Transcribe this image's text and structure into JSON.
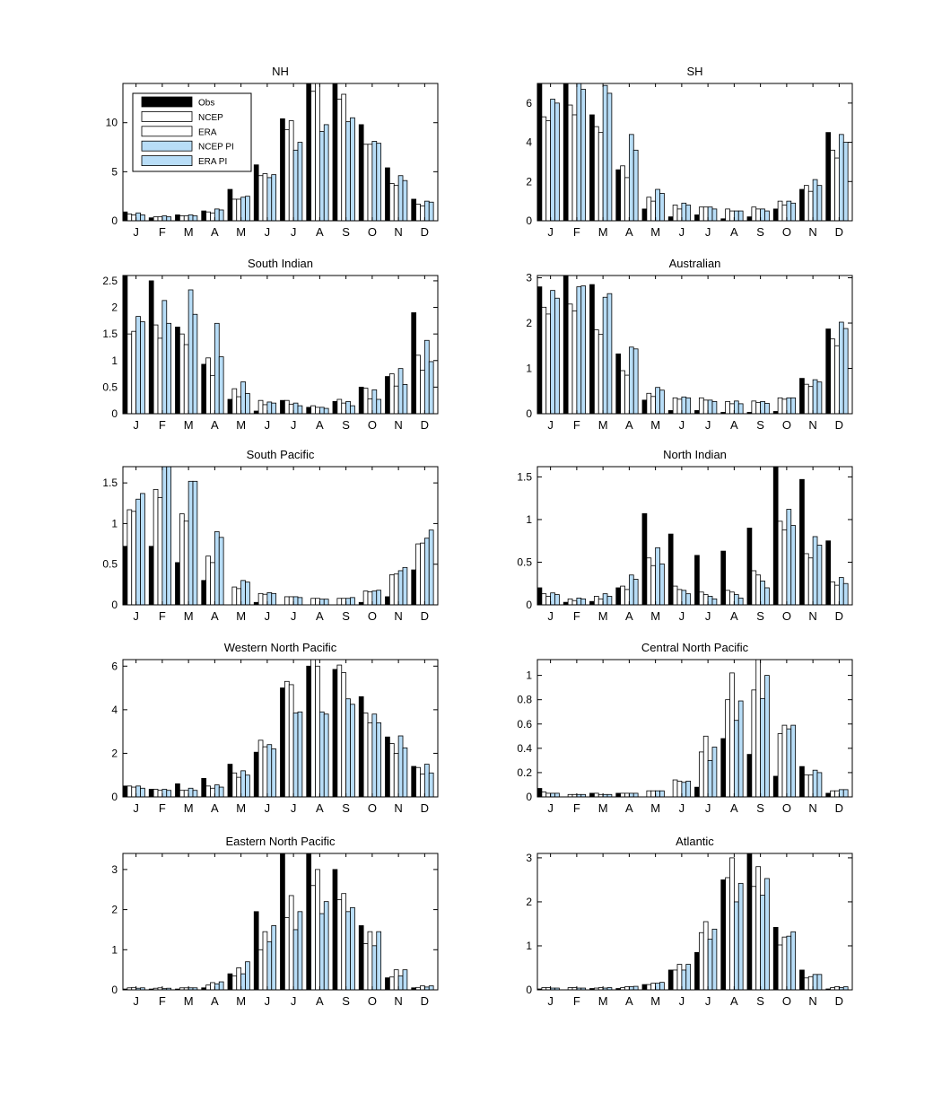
{
  "colors": {
    "Obs": "#000000",
    "NCEP": "#ffffff",
    "ERA": "#ffffff",
    "NCEP PI": "#b8ddf7",
    "ERA PI": "#b8ddf7",
    "edge": "#000000"
  },
  "legend": {
    "entries": [
      "Obs",
      "NCEP",
      "ERA",
      "NCEP PI",
      "ERA PI"
    ],
    "placement": "top-left",
    "panel": 0
  },
  "chart_data": [
    {
      "type": "bar",
      "title": "NH",
      "categories": [
        "J",
        "F",
        "M",
        "A",
        "M",
        "J",
        "J",
        "A",
        "S",
        "O",
        "N",
        "D"
      ],
      "ylim": [
        0,
        14
      ],
      "yticks": [
        0,
        5,
        10
      ],
      "ytick_labels": [
        "0",
        "5",
        "10"
      ],
      "series": [
        {
          "name": "Obs",
          "values": [
            0.9,
            0.3,
            0.6,
            1.0,
            3.2,
            5.7,
            10.4,
            14.0,
            14.0,
            9.8,
            5.4,
            2.2
          ]
        },
        {
          "name": "NCEP",
          "values": [
            0.7,
            0.4,
            0.5,
            0.9,
            2.2,
            4.6,
            9.3,
            13.2,
            12.4,
            7.8,
            3.8,
            1.7
          ]
        },
        {
          "name": "ERA",
          "values": [
            0.6,
            0.4,
            0.5,
            0.8,
            2.2,
            4.8,
            10.2,
            14.0,
            12.9,
            7.8,
            3.6,
            1.5
          ]
        },
        {
          "name": "NCEP PI",
          "values": [
            0.8,
            0.5,
            0.6,
            1.2,
            2.4,
            4.4,
            7.2,
            9.1,
            10.1,
            8.1,
            4.6,
            2.0
          ]
        },
        {
          "name": "ERA PI",
          "values": [
            0.6,
            0.4,
            0.5,
            1.1,
            2.5,
            4.7,
            8.0,
            9.8,
            10.5,
            7.9,
            4.1,
            1.9
          ]
        }
      ]
    },
    {
      "type": "bar",
      "title": "SH",
      "categories": [
        "J",
        "F",
        "M",
        "A",
        "M",
        "J",
        "J",
        "A",
        "S",
        "O",
        "N",
        "D"
      ],
      "ylim": [
        0,
        7
      ],
      "yticks": [
        0,
        2,
        4,
        6
      ],
      "ytick_labels": [
        "0",
        "2",
        "4",
        "6"
      ],
      "series": [
        {
          "name": "Obs",
          "values": [
            7.0,
            7.0,
            5.4,
            2.6,
            0.6,
            0.2,
            0.3,
            0.1,
            0.2,
            0.6,
            1.6,
            4.5
          ]
        },
        {
          "name": "NCEP",
          "values": [
            5.3,
            5.9,
            4.8,
            2.8,
            1.2,
            0.8,
            0.7,
            0.6,
            0.7,
            1.0,
            1.8,
            3.6
          ]
        },
        {
          "name": "ERA",
          "values": [
            5.1,
            5.4,
            4.5,
            2.2,
            1.0,
            0.6,
            0.7,
            0.5,
            0.6,
            0.8,
            1.5,
            3.2
          ]
        },
        {
          "name": "NCEP PI",
          "values": [
            6.2,
            7.0,
            6.9,
            4.4,
            1.6,
            0.9,
            0.7,
            0.5,
            0.6,
            1.0,
            2.1,
            4.4
          ]
        },
        {
          "name": "ERA PI",
          "values": [
            6.0,
            6.7,
            6.5,
            3.6,
            1.4,
            0.8,
            0.6,
            0.5,
            0.5,
            0.9,
            1.8,
            4.0
          ]
        }
      ]
    },
    {
      "type": "bar",
      "title": "South Indian",
      "categories": [
        "J",
        "F",
        "M",
        "A",
        "M",
        "J",
        "J",
        "A",
        "S",
        "O",
        "N",
        "D"
      ],
      "ylim": [
        0,
        2.6
      ],
      "yticks": [
        0,
        0.5,
        1,
        1.5,
        2,
        2.5
      ],
      "ytick_labels": [
        "0",
        "0.5",
        "1",
        "1.5",
        "2",
        "2.5"
      ],
      "series": [
        {
          "name": "Obs",
          "values": [
            2.6,
            2.5,
            1.63,
            0.93,
            0.27,
            0.05,
            0.25,
            0.12,
            0.23,
            0.5,
            0.7,
            1.9
          ]
        },
        {
          "name": "NCEP",
          "values": [
            1.5,
            1.67,
            1.5,
            1.05,
            0.47,
            0.25,
            0.25,
            0.15,
            0.27,
            0.48,
            0.75,
            1.1
          ]
        },
        {
          "name": "ERA",
          "values": [
            1.55,
            1.42,
            1.3,
            0.72,
            0.32,
            0.17,
            0.18,
            0.12,
            0.2,
            0.28,
            0.52,
            0.82
          ]
        },
        {
          "name": "NCEP PI",
          "values": [
            1.83,
            2.13,
            2.33,
            1.7,
            0.6,
            0.22,
            0.2,
            0.12,
            0.23,
            0.45,
            0.85,
            1.38
          ]
        },
        {
          "name": "ERA PI",
          "values": [
            1.73,
            1.7,
            1.87,
            1.07,
            0.38,
            0.2,
            0.15,
            0.1,
            0.15,
            0.27,
            0.55,
            0.98
          ]
        }
      ]
    },
    {
      "type": "bar",
      "title": "Australian",
      "categories": [
        "J",
        "F",
        "M",
        "A",
        "M",
        "J",
        "J",
        "A",
        "S",
        "O",
        "N",
        "D"
      ],
      "ylim": [
        0,
        3.05
      ],
      "yticks": [
        0,
        1,
        2,
        3
      ],
      "ytick_labels": [
        "0",
        "1",
        "2",
        "3"
      ],
      "series": [
        {
          "name": "Obs",
          "values": [
            2.8,
            3.05,
            2.85,
            1.32,
            0.3,
            0.07,
            0.07,
            0.03,
            0.03,
            0.05,
            0.78,
            1.87
          ]
        },
        {
          "name": "NCEP",
          "values": [
            2.35,
            2.42,
            1.85,
            0.95,
            0.45,
            0.35,
            0.35,
            0.27,
            0.28,
            0.35,
            0.65,
            1.65
          ]
        },
        {
          "name": "ERA",
          "values": [
            2.2,
            2.27,
            1.75,
            0.85,
            0.38,
            0.32,
            0.3,
            0.22,
            0.25,
            0.32,
            0.6,
            1.5
          ]
        },
        {
          "name": "NCEP PI",
          "values": [
            2.72,
            2.8,
            2.57,
            1.47,
            0.58,
            0.37,
            0.3,
            0.28,
            0.27,
            0.35,
            0.75,
            2.02
          ]
        },
        {
          "name": "ERA PI",
          "values": [
            2.55,
            2.82,
            2.65,
            1.43,
            0.52,
            0.35,
            0.27,
            0.22,
            0.23,
            0.35,
            0.7,
            1.88
          ]
        }
      ]
    },
    {
      "type": "bar",
      "title": "South Pacific",
      "categories": [
        "J",
        "F",
        "M",
        "A",
        "M",
        "J",
        "J",
        "A",
        "S",
        "O",
        "N",
        "D"
      ],
      "ylim": [
        0,
        1.7
      ],
      "yticks": [
        0,
        0.5,
        1,
        1.5
      ],
      "ytick_labels": [
        "0",
        "0.5",
        "1",
        "1.5"
      ],
      "series": [
        {
          "name": "Obs",
          "values": [
            0.72,
            0.72,
            0.52,
            0.3,
            0.0,
            0.03,
            0.0,
            0.0,
            0.0,
            0.03,
            0.1,
            0.43
          ]
        },
        {
          "name": "NCEP",
          "values": [
            1.17,
            1.42,
            1.12,
            0.6,
            0.22,
            0.14,
            0.1,
            0.08,
            0.08,
            0.17,
            0.37,
            0.75
          ]
        },
        {
          "name": "ERA",
          "values": [
            1.15,
            1.32,
            1.03,
            0.52,
            0.2,
            0.13,
            0.1,
            0.08,
            0.08,
            0.16,
            0.38,
            0.76
          ]
        },
        {
          "name": "NCEP PI",
          "values": [
            1.3,
            1.7,
            1.52,
            0.9,
            0.3,
            0.15,
            0.1,
            0.07,
            0.08,
            0.17,
            0.42,
            0.82
          ]
        },
        {
          "name": "ERA PI",
          "values": [
            1.37,
            1.7,
            1.52,
            0.83,
            0.28,
            0.14,
            0.09,
            0.07,
            0.09,
            0.18,
            0.46,
            0.92
          ]
        }
      ]
    },
    {
      "type": "bar",
      "title": "North Indian",
      "categories": [
        "J",
        "F",
        "M",
        "A",
        "M",
        "J",
        "J",
        "A",
        "S",
        "O",
        "N",
        "D"
      ],
      "ylim": [
        0,
        1.62
      ],
      "yticks": [
        0,
        0.5,
        1,
        1.5
      ],
      "ytick_labels": [
        "0",
        "0.5",
        "1",
        "1.5"
      ],
      "series": [
        {
          "name": "Obs",
          "values": [
            0.2,
            0.03,
            0.04,
            0.2,
            1.07,
            0.83,
            0.58,
            0.63,
            0.9,
            1.62,
            1.47,
            0.75
          ]
        },
        {
          "name": "NCEP",
          "values": [
            0.13,
            0.07,
            0.1,
            0.22,
            0.55,
            0.22,
            0.15,
            0.17,
            0.4,
            0.98,
            0.6,
            0.27
          ]
        },
        {
          "name": "ERA",
          "values": [
            0.1,
            0.05,
            0.07,
            0.18,
            0.46,
            0.18,
            0.12,
            0.15,
            0.35,
            0.88,
            0.55,
            0.23
          ]
        },
        {
          "name": "NCEP PI",
          "values": [
            0.14,
            0.08,
            0.13,
            0.35,
            0.67,
            0.17,
            0.1,
            0.12,
            0.28,
            1.12,
            0.8,
            0.32
          ]
        },
        {
          "name": "ERA PI",
          "values": [
            0.12,
            0.07,
            0.1,
            0.3,
            0.48,
            0.13,
            0.07,
            0.08,
            0.2,
            0.93,
            0.7,
            0.25
          ]
        }
      ]
    },
    {
      "type": "bar",
      "title": "Western North Pacific",
      "categories": [
        "J",
        "F",
        "M",
        "A",
        "M",
        "J",
        "J",
        "A",
        "S",
        "O",
        "N",
        "D"
      ],
      "ylim": [
        0,
        6.3
      ],
      "yticks": [
        0,
        2,
        4,
        6
      ],
      "ytick_labels": [
        "0",
        "2",
        "4",
        "6"
      ],
      "series": [
        {
          "name": "Obs",
          "values": [
            0.5,
            0.35,
            0.6,
            0.85,
            1.5,
            2.05,
            5.0,
            6.0,
            5.85,
            4.6,
            2.75,
            1.4
          ]
        },
        {
          "name": "NCEP",
          "values": [
            0.5,
            0.35,
            0.3,
            0.5,
            1.1,
            2.6,
            5.3,
            6.3,
            6.05,
            3.85,
            2.45,
            1.35
          ]
        },
        {
          "name": "ERA",
          "values": [
            0.45,
            0.3,
            0.3,
            0.4,
            0.9,
            2.3,
            5.15,
            6.0,
            5.7,
            3.4,
            2.0,
            1.05
          ]
        },
        {
          "name": "NCEP PI",
          "values": [
            0.5,
            0.35,
            0.4,
            0.55,
            1.2,
            2.4,
            3.85,
            3.9,
            4.5,
            3.8,
            2.8,
            1.5
          ]
        },
        {
          "name": "ERA PI",
          "values": [
            0.4,
            0.3,
            0.3,
            0.45,
            1.0,
            2.2,
            3.9,
            3.8,
            4.25,
            3.4,
            2.25,
            1.1
          ]
        }
      ]
    },
    {
      "type": "bar",
      "title": "Central North Pacific",
      "categories": [
        "J",
        "F",
        "M",
        "A",
        "M",
        "J",
        "J",
        "A",
        "S",
        "O",
        "N",
        "D"
      ],
      "ylim": [
        0,
        1.13
      ],
      "yticks": [
        0,
        0.2,
        0.4,
        0.6,
        0.8,
        1
      ],
      "ytick_labels": [
        "0",
        "0.2",
        "0.4",
        "0.6",
        "0.8",
        "1"
      ],
      "series": [
        {
          "name": "Obs",
          "values": [
            0.07,
            0.0,
            0.03,
            0.03,
            0.0,
            0.0,
            0.08,
            0.48,
            0.35,
            0.17,
            0.25,
            0.03
          ]
        },
        {
          "name": "NCEP",
          "values": [
            0.04,
            0.02,
            0.03,
            0.03,
            0.05,
            0.14,
            0.37,
            0.8,
            0.88,
            0.52,
            0.18,
            0.05
          ]
        },
        {
          "name": "ERA",
          "values": [
            0.03,
            0.02,
            0.02,
            0.03,
            0.05,
            0.13,
            0.5,
            1.02,
            1.13,
            0.59,
            0.18,
            0.05
          ]
        },
        {
          "name": "NCEP PI",
          "values": [
            0.03,
            0.02,
            0.02,
            0.03,
            0.05,
            0.12,
            0.3,
            0.63,
            0.81,
            0.56,
            0.22,
            0.06
          ]
        },
        {
          "name": "ERA PI",
          "values": [
            0.03,
            0.02,
            0.02,
            0.03,
            0.05,
            0.13,
            0.41,
            0.79,
            1.0,
            0.59,
            0.2,
            0.06
          ]
        }
      ]
    },
    {
      "type": "bar",
      "title": "Eastern North Pacific",
      "categories": [
        "J",
        "F",
        "M",
        "A",
        "M",
        "J",
        "J",
        "A",
        "S",
        "O",
        "N",
        "D"
      ],
      "ylim": [
        0,
        3.4
      ],
      "yticks": [
        0,
        1,
        2,
        3
      ],
      "ytick_labels": [
        "0",
        "1",
        "2",
        "3"
      ],
      "series": [
        {
          "name": "Obs",
          "values": [
            0.02,
            0.02,
            0.02,
            0.05,
            0.4,
            1.95,
            3.4,
            3.4,
            3.0,
            1.6,
            0.3,
            0.05
          ]
        },
        {
          "name": "NCEP",
          "values": [
            0.05,
            0.04,
            0.05,
            0.12,
            0.35,
            1.0,
            1.8,
            2.6,
            2.25,
            1.15,
            0.32,
            0.06
          ]
        },
        {
          "name": "ERA",
          "values": [
            0.06,
            0.05,
            0.05,
            0.18,
            0.55,
            1.45,
            2.35,
            3.0,
            2.4,
            1.45,
            0.5,
            0.1
          ]
        },
        {
          "name": "NCEP PI",
          "values": [
            0.04,
            0.03,
            0.05,
            0.15,
            0.4,
            1.2,
            1.5,
            1.9,
            1.95,
            1.1,
            0.35,
            0.07
          ]
        },
        {
          "name": "ERA PI",
          "values": [
            0.05,
            0.04,
            0.05,
            0.2,
            0.7,
            1.6,
            1.95,
            2.2,
            2.05,
            1.45,
            0.5,
            0.1
          ]
        }
      ]
    },
    {
      "type": "bar",
      "title": "Atlantic",
      "categories": [
        "J",
        "F",
        "M",
        "A",
        "M",
        "J",
        "J",
        "A",
        "S",
        "O",
        "N",
        "D"
      ],
      "ylim": [
        0,
        3.1
      ],
      "yticks": [
        0,
        1,
        2,
        3
      ],
      "ytick_labels": [
        "0",
        "1",
        "2",
        "3"
      ],
      "series": [
        {
          "name": "Obs",
          "values": [
            0.02,
            0.0,
            0.03,
            0.03,
            0.12,
            0.45,
            0.85,
            2.5,
            3.1,
            1.42,
            0.45,
            0.02
          ]
        },
        {
          "name": "NCEP",
          "values": [
            0.05,
            0.05,
            0.04,
            0.05,
            0.12,
            0.45,
            1.3,
            2.55,
            2.35,
            1.02,
            0.27,
            0.05
          ]
        },
        {
          "name": "ERA",
          "values": [
            0.05,
            0.05,
            0.05,
            0.07,
            0.15,
            0.58,
            1.55,
            3.0,
            2.8,
            1.2,
            0.3,
            0.07
          ]
        },
        {
          "name": "NCEP PI",
          "values": [
            0.04,
            0.04,
            0.04,
            0.07,
            0.15,
            0.45,
            1.15,
            2.0,
            2.15,
            1.22,
            0.35,
            0.05
          ]
        },
        {
          "name": "ERA PI",
          "values": [
            0.04,
            0.04,
            0.05,
            0.08,
            0.17,
            0.58,
            1.38,
            2.42,
            2.53,
            1.32,
            0.35,
            0.07
          ]
        }
      ]
    }
  ]
}
